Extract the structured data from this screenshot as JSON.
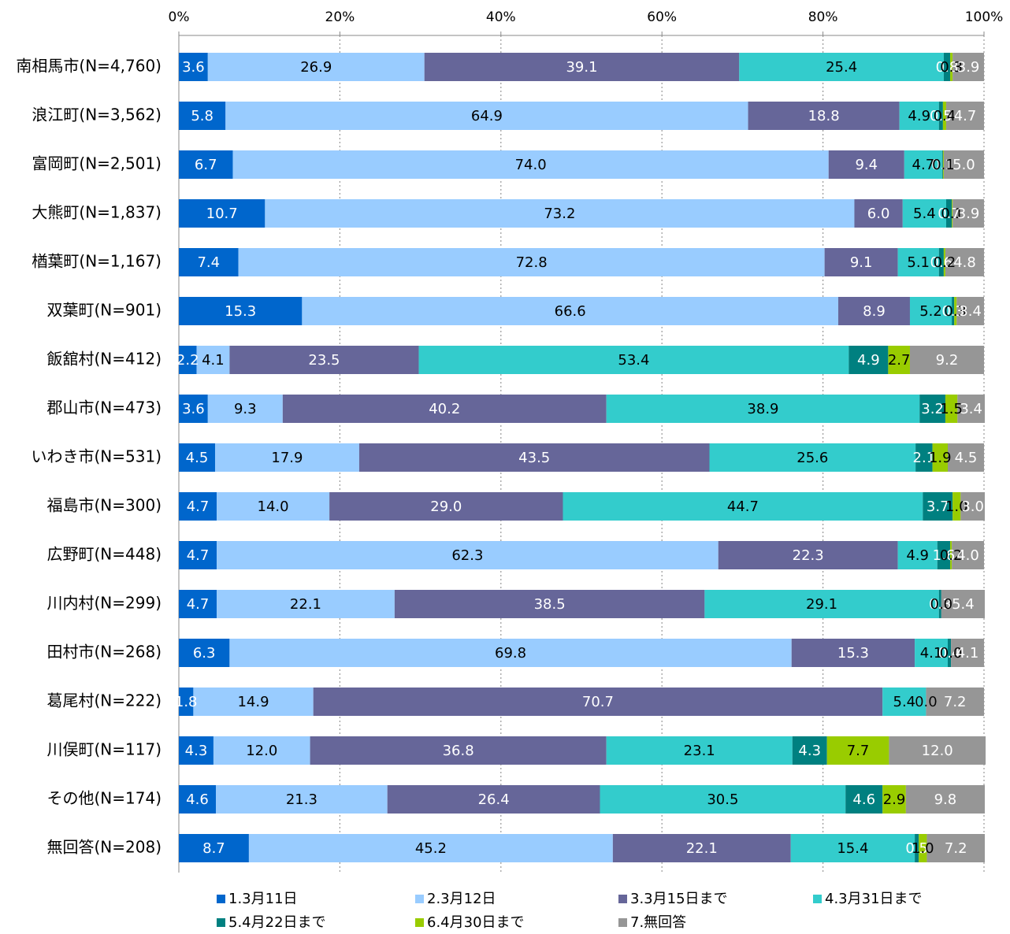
{
  "chart_data": {
    "type": "stacked-barh",
    "categories": [
      "南相馬市(N=4,760)",
      "浪江町(N=3,562)",
      "富岡町(N=2,501)",
      "大熊町(N=1,837)",
      "楢葉町(N=1,167)",
      "双葉町(N=901)",
      "飯舘村(N=412)",
      "郡山市(N=473)",
      "いわき市(N=531)",
      "福島市(N=300)",
      "広野町(N=448)",
      "川内村(N=299)",
      "田村市(N=268)",
      "葛尾村(N=222)",
      "川俣町(N=117)",
      "その他(N=174)",
      "無回答(N=208)"
    ],
    "series": [
      {
        "name": "1.3月11日",
        "color": "#0066cc",
        "label_color": "#ffffff",
        "values": [
          3.6,
          5.8,
          6.7,
          10.7,
          7.4,
          15.3,
          2.2,
          3.6,
          4.5,
          4.7,
          4.7,
          4.7,
          6.3,
          1.8,
          4.3,
          4.6,
          8.7
        ],
        "value_labels": [
          "3.6",
          "5.8",
          "6.7",
          "10.7",
          "7.4",
          "15.3",
          "2.2",
          "3.6",
          "4.5",
          "4.7",
          "4.7",
          "4.7",
          "6.3",
          "1.8",
          "4.3",
          "4.6",
          "8.7"
        ]
      },
      {
        "name": "2.3月12日",
        "color": "#99ccff",
        "label_color": "#000000",
        "values": [
          26.9,
          64.9,
          74.0,
          73.2,
          72.8,
          66.6,
          4.1,
          9.3,
          17.9,
          14.0,
          62.3,
          22.1,
          69.8,
          14.9,
          12.0,
          21.3,
          45.2
        ],
        "value_labels": [
          "26.9",
          "64.9",
          "74.0",
          "73.2",
          "72.8",
          "66.6",
          "4.1",
          "9.3",
          "17.9",
          "14.0",
          "62.3",
          "22.1",
          "69.8",
          "14.9",
          "12.0",
          "21.3",
          "45.2"
        ]
      },
      {
        "name": "3.3月15日まで",
        "color": "#666699",
        "label_color": "#ffffff",
        "values": [
          39.1,
          18.8,
          9.4,
          6.0,
          9.1,
          8.9,
          23.5,
          40.2,
          43.5,
          29.0,
          22.3,
          38.5,
          15.3,
          70.7,
          36.8,
          26.4,
          22.1
        ],
        "value_labels": [
          "39.1",
          "18.8",
          "9.4",
          "6.0",
          "9.1",
          "8.9",
          "23.5",
          "40.2",
          "43.5",
          "29.0",
          "22.3",
          "38.5",
          "15.3",
          "70.7",
          "36.8",
          "26.4",
          "22.1"
        ]
      },
      {
        "name": "4.3月31日まで",
        "color": "#33cccc",
        "label_color": "#000000",
        "values": [
          25.4,
          4.9,
          4.7,
          5.4,
          5.1,
          5.2,
          53.4,
          38.9,
          25.6,
          44.7,
          4.9,
          29.1,
          4.1,
          5.4,
          23.1,
          30.5,
          15.4
        ],
        "value_labels": [
          "25.4",
          "4.9",
          "4.7",
          "5.4",
          "5.1",
          "5.2",
          "53.4",
          "38.9",
          "25.6",
          "44.7",
          "4.9",
          "29.1",
          "4.1",
          "5.4",
          "23.1",
          "30.5",
          "15.4"
        ]
      },
      {
        "name": "5.4月22日まで",
        "color": "#008080",
        "label_color": "#ffffff",
        "values": [
          0.8,
          0.5,
          0.1,
          0.7,
          0.6,
          0.3,
          4.9,
          3.2,
          2.1,
          3.7,
          1.6,
          0.3,
          0.4,
          0.0,
          4.3,
          4.6,
          0.5
        ],
        "value_labels": [
          "0.8",
          "0.5",
          "0.1",
          "0.7",
          "0.6",
          "0.3",
          "4.9",
          "3.2",
          "2.1",
          "3.7",
          "1.6",
          "0.3",
          "0.4",
          "0.0",
          "4.3",
          "4.6",
          "0.5"
        ]
      },
      {
        "name": "6.4月30日まで",
        "color": "#99cc00",
        "label_color": "#000000",
        "values": [
          0.3,
          0.4,
          0.1,
          0.1,
          0.2,
          0.3,
          2.7,
          1.5,
          1.9,
          1.0,
          0.2,
          0.0,
          0.0,
          0.0,
          7.7,
          2.9,
          1.0
        ],
        "value_labels": [
          "0.3",
          "0.4",
          "0.1",
          "0.1",
          "0.2",
          "0.3",
          "2.7",
          "1.5",
          "1.9",
          "1.0",
          "0.2",
          "0.0",
          "0.0",
          "0.0",
          "7.7",
          "2.9",
          "1.0"
        ]
      },
      {
        "name": "7.無回答",
        "color": "#969696",
        "label_color": "#ffffff",
        "values": [
          3.9,
          4.7,
          5.0,
          3.9,
          4.8,
          3.4,
          9.2,
          3.4,
          4.5,
          3.0,
          4.0,
          5.4,
          4.1,
          7.2,
          12.0,
          9.8,
          7.2
        ],
        "value_labels": [
          "3.9",
          "4.7",
          "5.0",
          "3.9",
          "4.8",
          "3.4",
          "9.2",
          "3.4",
          "4.5",
          "3.0",
          "4.0",
          "5.4",
          "4.1",
          "7.2",
          "12.0",
          "9.8",
          "7.2"
        ]
      }
    ],
    "xlim": [
      0,
      100
    ],
    "xticks": [
      {
        "value": 0,
        "label": "0%"
      },
      {
        "value": 20,
        "label": "20%"
      },
      {
        "value": 40,
        "label": "40%"
      },
      {
        "value": 60,
        "label": "60%"
      },
      {
        "value": 80,
        "label": "80%"
      },
      {
        "value": 100,
        "label": "100%"
      }
    ],
    "grid": true,
    "legend": "bottom"
  }
}
